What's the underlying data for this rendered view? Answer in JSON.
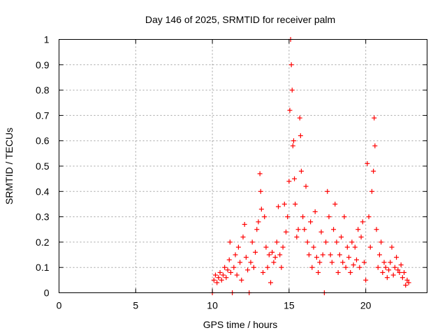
{
  "chart_data": {
    "type": "scatter",
    "title": "Day 146 of 2025, SRMTID for receiver palm",
    "xlabel": "GPS time / hours",
    "ylabel": "SRMTID / TECUs",
    "xlim": [
      0,
      24
    ],
    "ylim": [
      0,
      1
    ],
    "xticks": [
      0,
      5,
      10,
      15,
      20
    ],
    "yticks": [
      0,
      0.1,
      0.2,
      0.3,
      0.4,
      0.5,
      0.6,
      0.7,
      0.8,
      0.9,
      1
    ],
    "grid": true,
    "marker": "+",
    "color": "#ff0000",
    "series": [
      {
        "name": "SRMTID",
        "points": [
          [
            10.0,
            0.0
          ],
          [
            10.1,
            0.05
          ],
          [
            10.2,
            0.07
          ],
          [
            10.3,
            0.04
          ],
          [
            10.4,
            0.06
          ],
          [
            10.5,
            0.08
          ],
          [
            10.6,
            0.05
          ],
          [
            10.7,
            0.07
          ],
          [
            10.8,
            0.1
          ],
          [
            10.9,
            0.06
          ],
          [
            11.0,
            0.09
          ],
          [
            11.1,
            0.13
          ],
          [
            11.15,
            0.2
          ],
          [
            11.2,
            0.08
          ],
          [
            11.3,
            0.0
          ],
          [
            11.4,
            0.1
          ],
          [
            11.5,
            0.15
          ],
          [
            11.6,
            0.07
          ],
          [
            11.7,
            0.18
          ],
          [
            11.8,
            0.12
          ],
          [
            11.9,
            0.05
          ],
          [
            12.0,
            0.22
          ],
          [
            12.1,
            0.27
          ],
          [
            12.2,
            0.14
          ],
          [
            12.3,
            0.09
          ],
          [
            12.4,
            0.0
          ],
          [
            12.5,
            0.12
          ],
          [
            12.6,
            0.2
          ],
          [
            12.7,
            0.1
          ],
          [
            12.8,
            0.16
          ],
          [
            12.9,
            0.25
          ],
          [
            13.0,
            0.28
          ],
          [
            13.1,
            0.47
          ],
          [
            13.15,
            0.4
          ],
          [
            13.2,
            0.33
          ],
          [
            13.3,
            0.08
          ],
          [
            13.4,
            0.3
          ],
          [
            13.5,
            0.18
          ],
          [
            13.6,
            0.1
          ],
          [
            13.7,
            0.15
          ],
          [
            13.8,
            0.04
          ],
          [
            13.9,
            0.16
          ],
          [
            14.0,
            0.12
          ],
          [
            14.1,
            0.14
          ],
          [
            14.2,
            0.2
          ],
          [
            14.3,
            0.34
          ],
          [
            14.4,
            0.15
          ],
          [
            14.5,
            0.1
          ],
          [
            14.6,
            0.18
          ],
          [
            14.7,
            0.35
          ],
          [
            14.8,
            0.24
          ],
          [
            14.9,
            0.3
          ],
          [
            15.0,
            0.44
          ],
          [
            15.05,
            0.72
          ],
          [
            15.1,
            1.0
          ],
          [
            15.15,
            0.9
          ],
          [
            15.2,
            0.8
          ],
          [
            15.25,
            0.58
          ],
          [
            15.3,
            0.6
          ],
          [
            15.35,
            0.45
          ],
          [
            15.4,
            0.35
          ],
          [
            15.5,
            0.22
          ],
          [
            15.6,
            0.25
          ],
          [
            15.7,
            0.69
          ],
          [
            15.75,
            0.62
          ],
          [
            15.8,
            0.48
          ],
          [
            15.9,
            0.3
          ],
          [
            16.0,
            0.25
          ],
          [
            16.1,
            0.42
          ],
          [
            16.2,
            0.2
          ],
          [
            16.3,
            0.15
          ],
          [
            16.4,
            0.28
          ],
          [
            16.5,
            0.1
          ],
          [
            16.6,
            0.18
          ],
          [
            16.7,
            0.32
          ],
          [
            16.8,
            0.14
          ],
          [
            16.9,
            0.08
          ],
          [
            17.0,
            0.12
          ],
          [
            17.1,
            0.24
          ],
          [
            17.2,
            0.15
          ],
          [
            17.3,
            0.0
          ],
          [
            17.4,
            0.2
          ],
          [
            17.5,
            0.4
          ],
          [
            17.6,
            0.3
          ],
          [
            17.7,
            0.15
          ],
          [
            17.8,
            0.12
          ],
          [
            17.9,
            0.25
          ],
          [
            18.0,
            0.35
          ],
          [
            18.1,
            0.2
          ],
          [
            18.2,
            0.08
          ],
          [
            18.3,
            0.15
          ],
          [
            18.4,
            0.22
          ],
          [
            18.5,
            0.12
          ],
          [
            18.6,
            0.3
          ],
          [
            18.7,
            0.1
          ],
          [
            18.8,
            0.18
          ],
          [
            18.9,
            0.14
          ],
          [
            19.0,
            0.08
          ],
          [
            19.1,
            0.2
          ],
          [
            19.2,
            0.11
          ],
          [
            19.3,
            0.18
          ],
          [
            19.4,
            0.13
          ],
          [
            19.5,
            0.25
          ],
          [
            19.6,
            0.1
          ],
          [
            19.7,
            0.22
          ],
          [
            19.8,
            0.28
          ],
          [
            19.9,
            0.12
          ],
          [
            20.0,
            0.05
          ],
          [
            20.1,
            0.51
          ],
          [
            20.2,
            0.3
          ],
          [
            20.3,
            0.18
          ],
          [
            20.4,
            0.4
          ],
          [
            20.5,
            0.48
          ],
          [
            20.55,
            0.69
          ],
          [
            20.6,
            0.58
          ],
          [
            20.7,
            0.25
          ],
          [
            20.8,
            0.1
          ],
          [
            20.9,
            0.15
          ],
          [
            21.0,
            0.2
          ],
          [
            21.1,
            0.08
          ],
          [
            21.2,
            0.12
          ],
          [
            21.3,
            0.1
          ],
          [
            21.4,
            0.06
          ],
          [
            21.5,
            0.09
          ],
          [
            21.6,
            0.12
          ],
          [
            21.7,
            0.18
          ],
          [
            21.8,
            0.07
          ],
          [
            21.9,
            0.1
          ],
          [
            22.0,
            0.14
          ],
          [
            22.1,
            0.09
          ],
          [
            22.2,
            0.08
          ],
          [
            22.3,
            0.11
          ],
          [
            22.4,
            0.06
          ],
          [
            22.5,
            0.08
          ],
          [
            22.6,
            0.03
          ],
          [
            22.7,
            0.05
          ],
          [
            22.8,
            0.04
          ]
        ]
      }
    ]
  }
}
